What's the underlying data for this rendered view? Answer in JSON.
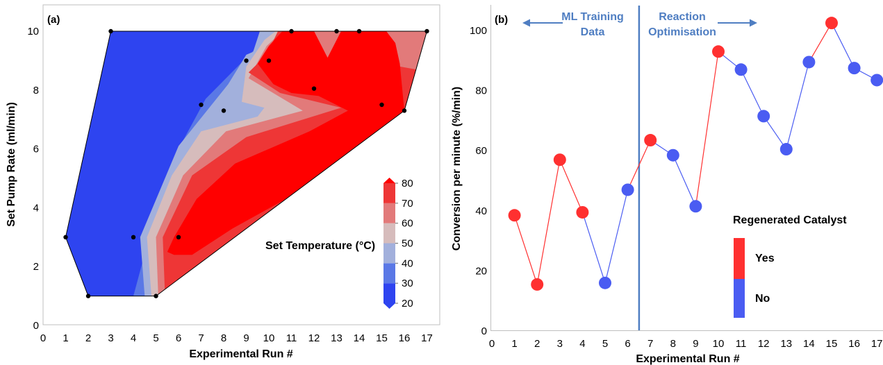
{
  "chart_data": [
    {
      "type": "contour",
      "panel_label": "(a)",
      "xlabel": "Experimental Run #",
      "ylabel": "Set Pump Rate (ml/min)",
      "xlim": [
        0,
        17
      ],
      "ylim": [
        0,
        10
      ],
      "xticks": [
        0,
        1,
        2,
        3,
        4,
        5,
        6,
        7,
        8,
        9,
        10,
        11,
        12,
        13,
        14,
        15,
        16,
        17
      ],
      "yticks": [
        0,
        2,
        4,
        6,
        8,
        10
      ],
      "grid": false,
      "points": [
        {
          "x": 1,
          "y": 3.0,
          "temperature": 20
        },
        {
          "x": 2,
          "y": 1.0,
          "temperature": 20
        },
        {
          "x": 3,
          "y": 10.0,
          "temperature": 20
        },
        {
          "x": 4,
          "y": 3.0,
          "temperature": 22
        },
        {
          "x": 5,
          "y": 1.0,
          "temperature": 22
        },
        {
          "x": 6,
          "y": 3.0,
          "temperature": 80
        },
        {
          "x": 7,
          "y": 7.5,
          "temperature": 30
        },
        {
          "x": 8,
          "y": 7.3,
          "temperature": 55
        },
        {
          "x": 9,
          "y": 9.0,
          "temperature": 30
        },
        {
          "x": 10,
          "y": 9.0,
          "temperature": 80
        },
        {
          "x": 11,
          "y": 10.0,
          "temperature": 80
        },
        {
          "x": 12,
          "y": 8.05,
          "temperature": 80
        },
        {
          "x": 13,
          "y": 10.0,
          "temperature": 70
        },
        {
          "x": 14,
          "y": 10.0,
          "temperature": 80
        },
        {
          "x": 15,
          "y": 7.5,
          "temperature": 80
        },
        {
          "x": 16,
          "y": 7.3,
          "temperature": 80
        },
        {
          "x": 17,
          "y": 10.0,
          "temperature": 70
        }
      ],
      "colorbar": {
        "label": "Set Temperature (°C)",
        "ticks": [
          20,
          30,
          40,
          50,
          60,
          70,
          80
        ],
        "levels": [
          20,
          30,
          40,
          50,
          60,
          70,
          80
        ],
        "colors": [
          "#2e44f0",
          "#5a78e6",
          "#a2b0dc",
          "#d6bcbc",
          "#e27a7a",
          "#ee3636",
          "#ff0000"
        ]
      }
    },
    {
      "type": "line",
      "panel_label": "(b)",
      "xlabel": "Experimental Run #",
      "ylabel": "Conversion per minute (%/min)",
      "xlim": [
        0,
        17
      ],
      "ylim": [
        0,
        108
      ],
      "xticks": [
        0,
        1,
        2,
        3,
        4,
        5,
        6,
        7,
        8,
        9,
        10,
        11,
        12,
        13,
        14,
        15,
        16,
        17
      ],
      "yticks": [
        0,
        20,
        40,
        60,
        80,
        100
      ],
      "grid": false,
      "x": [
        1,
        2,
        3,
        4,
        5,
        6,
        7,
        8,
        9,
        10,
        11,
        12,
        13,
        14,
        15,
        16,
        17
      ],
      "y": [
        38.5,
        15.5,
        57,
        39.5,
        16,
        47,
        63.5,
        58.5,
        41.5,
        93,
        87,
        71.5,
        60.5,
        89.5,
        102.5,
        87.5,
        83.5
      ],
      "regenerated": [
        true,
        true,
        true,
        true,
        false,
        false,
        true,
        false,
        false,
        true,
        false,
        false,
        false,
        false,
        true,
        false,
        false
      ],
      "divider_x": 6.5,
      "annotations": {
        "left_line1": "ML Training",
        "left_line2": "Data",
        "right_line1": "Reaction",
        "right_line2": "Optimisation"
      },
      "legend": {
        "title": "Regenerated Catalyst",
        "yes_label": "Yes",
        "no_label": "No",
        "placement": "lower-right"
      },
      "colors": {
        "yes": "#ff3030",
        "no": "#4a5cf2",
        "annotation": "#4f7ec2"
      }
    }
  ]
}
